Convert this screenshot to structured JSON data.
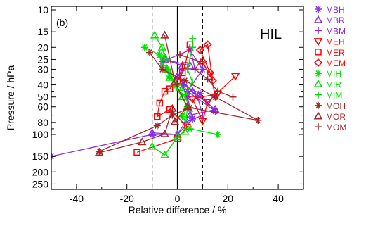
{
  "chart_data": {
    "type": "scatter",
    "panel_label": "(b)",
    "annotation": "HIL",
    "xlabel": "Relative difference / %",
    "ylabel": "Pressure / hPa",
    "xlim": [
      -50,
      50
    ],
    "ylim": [
      10,
      300
    ],
    "y_scale": "log",
    "y_inverted": true,
    "x_ticks": [
      -40,
      -20,
      0,
      20,
      40
    ],
    "x_tick_labels": [
      "-40",
      "-20",
      "0",
      "20",
      "40"
    ],
    "y_ticks": [
      10,
      15,
      20,
      25,
      30,
      40,
      50,
      60,
      80,
      100,
      150,
      200,
      250
    ],
    "y_tick_labels": [
      "10",
      "15",
      "20",
      "25",
      "30",
      "40",
      "50",
      "60",
      "80",
      "100",
      "150",
      "200",
      "250"
    ],
    "reference_lines": [
      {
        "x": 0,
        "style": "solid"
      },
      {
        "x": -10,
        "style": "dashed"
      },
      {
        "x": 10,
        "style": "dashed"
      }
    ],
    "legend_position": "right",
    "series": [
      {
        "name": "MBH",
        "color": "#8a2be2",
        "marker": "asterisk",
        "x": [
          -50,
          -10,
          0,
          6,
          4,
          2,
          9,
          15,
          4,
          10,
          5,
          -6
        ],
        "y": [
          150,
          100,
          100,
          75,
          50,
          40,
          47,
          65,
          45,
          30,
          21,
          26
        ]
      },
      {
        "name": "MBR",
        "color": "#8a2be2",
        "marker": "triangle-up",
        "x": [
          -10,
          0,
          5,
          15,
          6,
          0,
          5,
          -5,
          2
        ],
        "y": [
          97,
          100,
          70,
          63,
          45,
          34,
          28,
          25,
          28
        ]
      },
      {
        "name": "MBM",
        "color": "#8a2be2",
        "marker": "plus",
        "x": [
          3,
          10,
          8,
          0,
          2,
          7,
          5
        ],
        "y": [
          80,
          70,
          50,
          35,
          30,
          30,
          20
        ]
      },
      {
        "name": "MEH",
        "color": "#ff0000",
        "marker": "triangle-down",
        "x": [
          23,
          12,
          10,
          6,
          16
        ],
        "y": [
          34,
          55,
          78,
          52,
          47
        ]
      },
      {
        "name": "MER",
        "color": "#ff0000",
        "marker": "square",
        "x": [
          -16,
          0,
          4,
          -3,
          -8,
          -7,
          -5,
          -3,
          0,
          2,
          3,
          5
        ],
        "y": [
          139,
          108,
          87,
          63,
          72,
          56,
          45,
          43,
          37,
          32,
          28,
          19
        ]
      },
      {
        "name": "MEM",
        "color": "#ff0000",
        "marker": "diamond",
        "x": [
          15,
          13,
          9,
          12,
          14,
          10
        ],
        "y": [
          49,
          32,
          21,
          19,
          37,
          26
        ]
      },
      {
        "name": "MIH",
        "color": "#00e000",
        "marker": "asterisk",
        "x": [
          16,
          5,
          2,
          4,
          -1,
          -3,
          -4,
          -6,
          -7,
          -13
        ],
        "y": [
          100,
          90,
          72,
          60,
          40,
          34,
          30,
          28,
          23,
          20
        ]
      },
      {
        "name": "MIR",
        "color": "#00e000",
        "marker": "triangle-up",
        "x": [
          -10,
          -5,
          0,
          3,
          4,
          2,
          1,
          -3,
          -4,
          -5,
          -6,
          -9
        ],
        "y": [
          125,
          146,
          105,
          95,
          60,
          50,
          42,
          35,
          30,
          24,
          20,
          16
        ]
      },
      {
        "name": "MIM",
        "color": "#00e000",
        "marker": "plus",
        "x": [
          5,
          3,
          6,
          4,
          6,
          6
        ],
        "y": [
          65,
          48,
          38,
          30,
          20,
          17
        ]
      },
      {
        "name": "MOH",
        "color": "#a0282d",
        "marker": "asterisk",
        "x": [
          -31,
          -8,
          -2,
          5,
          32,
          15,
          3,
          -6,
          -11
        ],
        "y": [
          137,
          85,
          70,
          61,
          77,
          50,
          37,
          30,
          22
        ]
      },
      {
        "name": "MOR",
        "color": "#a0282d",
        "marker": "triangle-up",
        "x": [
          -31,
          -14,
          -5,
          -2,
          -1,
          4,
          -1,
          -5
        ],
        "y": [
          140,
          115,
          99,
          62,
          79,
          60,
          38,
          16
        ]
      },
      {
        "name": "MOM",
        "color": "#a0282d",
        "marker": "plus",
        "x": [
          22,
          16,
          12,
          7,
          9,
          1
        ],
        "y": [
          50,
          45,
          36,
          30,
          26,
          23
        ]
      }
    ]
  }
}
